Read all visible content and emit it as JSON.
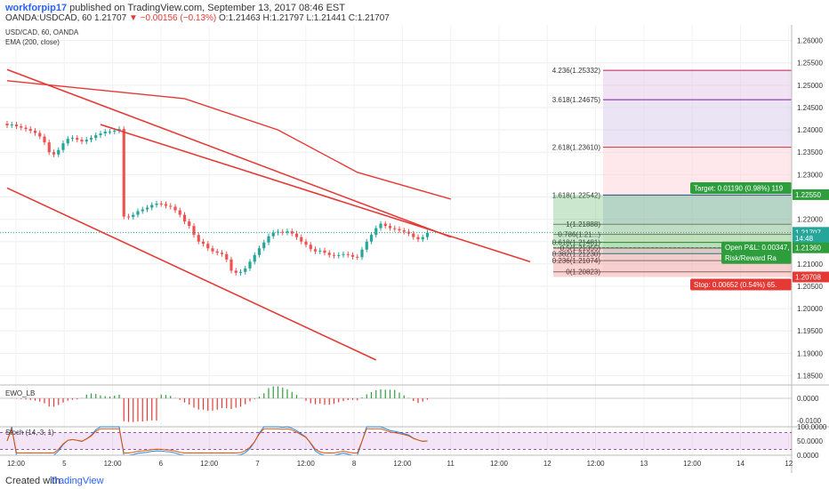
{
  "header": {
    "user": "workforpip17",
    "published": "published on TradingView.com, September 13, 2017 08:46 EST",
    "quote_prefix": "OANDA:USDCAD, 60  1.21707",
    "quote_change": "▼ −0.00156 (−0.13%)",
    "quote_ohlc": "O:1.21463  H:1.21797  L:1.21441  C:1.21707"
  },
  "legend": {
    "symbol": "USD/CAD, 60, OANDA",
    "ema": "EMA (200, close)",
    "ewo": "EWO_LB",
    "stoch": "Stoch (14, 3, 1)"
  },
  "footer": {
    "created_with": "Created with",
    "brand": "TradingView"
  },
  "colors": {
    "trend": "#e53935",
    "bull": "#26a69a",
    "bear": "#ef5350",
    "target": "#2e9e3d",
    "stop": "#e53935",
    "ewo_up": "#2e9e3d",
    "ewo_down": "#e53935",
    "stoch_k": "#1e88e5",
    "stoch_d": "#e65100"
  },
  "chart_data": {
    "type": "candlestick",
    "symbol": "USD/CAD",
    "timeframe": "60",
    "ylim": [
      1.1835,
      1.2635
    ],
    "price_ticks": [
      "1.26000",
      "1.25500",
      "1.25000",
      "1.24500",
      "1.24000",
      "1.23500",
      "1.23000",
      "1.22500",
      "1.22000",
      "1.21500",
      "1.21000",
      "1.20500",
      "1.20000",
      "1.19500",
      "1.19000",
      "1.18500"
    ],
    "x_ticks": [
      "12:00",
      "5",
      "12:00",
      "6",
      "12:00",
      "7",
      "12:00",
      "8",
      "12:00",
      "11",
      "12:00",
      "12",
      "12:00",
      "13",
      "12:00",
      "14",
      "12"
    ],
    "close_path": [
      1.241,
      1.2412,
      1.2408,
      1.2405,
      1.2402,
      1.2398,
      1.2393,
      1.2385,
      1.2372,
      1.235,
      1.2345,
      1.2355,
      1.237,
      1.238,
      1.2382,
      1.2378,
      1.2374,
      1.2378,
      1.2382,
      1.2388,
      1.2392,
      1.2396,
      1.2396,
      1.2398,
      1.2402,
      1.2206,
      1.2205,
      1.221,
      1.2218,
      1.2222,
      1.2226,
      1.2232,
      1.2235,
      1.2234,
      1.223,
      1.2228,
      1.222,
      1.221,
      1.2195,
      1.2185,
      1.2165,
      1.215,
      1.2145,
      1.2135,
      1.2128,
      1.2125,
      1.2122,
      1.211,
      1.2085,
      1.208,
      1.2082,
      1.209,
      1.2105,
      1.212,
      1.2135,
      1.2148,
      1.2162,
      1.217,
      1.2172,
      1.217,
      1.2173,
      1.2168,
      1.216,
      1.215,
      1.2143,
      1.2133,
      1.2128,
      1.213,
      1.2125,
      1.212,
      1.2118,
      1.212,
      1.2122,
      1.212,
      1.2116,
      1.2115,
      1.2132,
      1.215,
      1.2165,
      1.218,
      1.219,
      1.2185,
      1.218,
      1.2178,
      1.2175,
      1.2172,
      1.2168,
      1.216,
      1.2155,
      1.216,
      1.217
    ],
    "ema200": [
      [
        0,
        1.251
      ],
      [
        38,
        1.247
      ],
      [
        58,
        1.24
      ],
      [
        75,
        1.2305
      ],
      [
        95,
        1.2245
      ]
    ],
    "trendlines": [
      {
        "from": [
          0,
          1.2535
        ],
        "to": [
          95,
          1.216
        ]
      },
      {
        "from": [
          0,
          1.227
        ],
        "to": [
          79,
          1.1885
        ]
      },
      {
        "from": [
          20,
          1.2412
        ],
        "to": [
          112,
          1.2105
        ]
      }
    ],
    "fib_levels": [
      {
        "label": "4.236(1.25332)",
        "value": 1.25332,
        "color": "#c2185b"
      },
      {
        "label": "3.618(1.24675)",
        "value": 1.24675,
        "color": "#7b1fa2"
      },
      {
        "label": "2.618(1.23610)",
        "value": 1.2361,
        "color": "#d32f2f"
      },
      {
        "label": "1.618(1.22542)",
        "value": 1.22542,
        "color": "#1e3a8a"
      },
      {
        "label": "1(1.21888)",
        "value": 1.21888,
        "color": "#777777"
      },
      {
        "label": "0.786(1.21...)",
        "value": 1.2166,
        "color": "#8d6e63"
      },
      {
        "label": "0.618(1.21481)",
        "value": 1.21481,
        "color": "#2e7d32"
      },
      {
        "label": "0.5(1.21355)",
        "value": 1.21355,
        "color": "#2e7d32"
      },
      {
        "label": "0.382(1.21230)",
        "value": 1.2123,
        "color": "#00838f"
      },
      {
        "label": "0.236(1.21074)",
        "value": 1.21074,
        "color": "#757575"
      },
      {
        "label": "0(1.20823)",
        "value": 1.20823,
        "color": "#757575"
      }
    ],
    "position": {
      "entry": 1.2136,
      "target": 1.2255,
      "stop": 1.20708,
      "target_label": "Target: 0.01190 (0.98%) 119",
      "stop_label": "Stop: 0.00652 (0.54%) 65.",
      "open_pl_label": "Open P&L: 0.00347,",
      "rr_label": "Risk/Reward Ra"
    },
    "price_tags": [
      {
        "text": "1.22550",
        "value": 1.2255,
        "color": "#2e9e3d"
      },
      {
        "text": "1.21707",
        "value": 1.21707,
        "color": "#26a69a"
      },
      {
        "text": "14:48",
        "value": 1.2157,
        "color": "#26a69a"
      },
      {
        "text": "1.21360",
        "value": 1.2136,
        "color": "#2e9e3d"
      },
      {
        "text": "1.20708",
        "value": 1.20708,
        "color": "#e53935"
      }
    ],
    "ewo": {
      "ticks": [
        "0.0000",
        "-0.0100"
      ],
      "ylim": [
        -0.012,
        0.006
      ]
    },
    "stoch": {
      "ticks": [
        "100.0000",
        "50.0000",
        "0.0000"
      ],
      "bands": [
        80,
        20
      ],
      "ylim": [
        0,
        100
      ]
    }
  }
}
